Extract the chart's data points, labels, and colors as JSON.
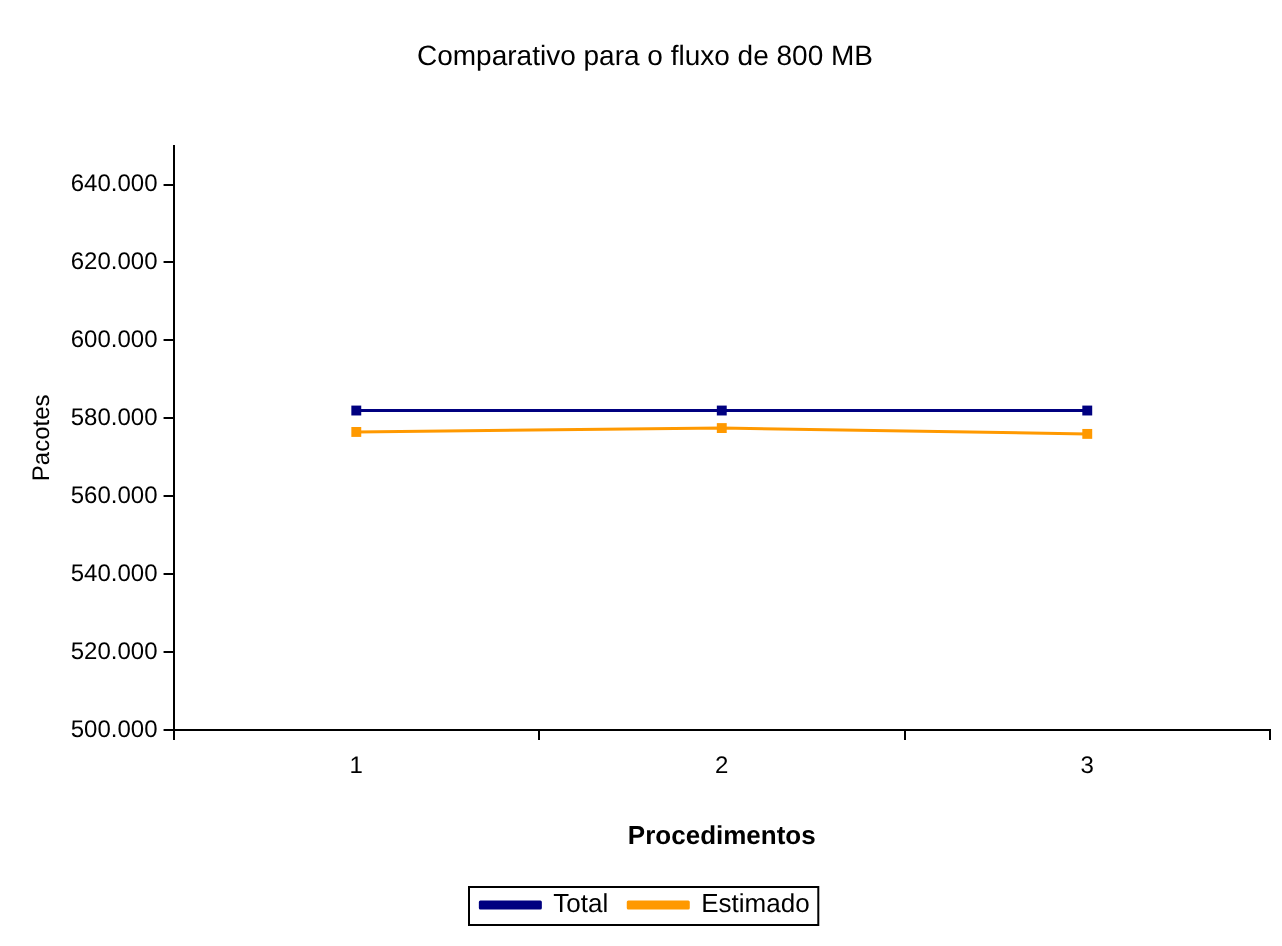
{
  "chart_data": {
    "type": "line",
    "title": "Comparativo para o fluxo de 800 MB",
    "xlabel": "Procedimentos",
    "ylabel": "Pacotes",
    "categories": [
      "1",
      "2",
      "3"
    ],
    "series": [
      {
        "name": "Total",
        "color": "#000080",
        "values": [
          582000,
          582000,
          582000
        ]
      },
      {
        "name": "Estimado",
        "color": "#ff9900",
        "values": [
          576500,
          577500,
          576000
        ]
      }
    ],
    "ylim": [
      500000,
      650000
    ],
    "yticks": [
      {
        "value": 500000,
        "label": "500.000"
      },
      {
        "value": 520000,
        "label": "520.000"
      },
      {
        "value": 540000,
        "label": "540.000"
      },
      {
        "value": 560000,
        "label": "560.000"
      },
      {
        "value": 580000,
        "label": "580.000"
      },
      {
        "value": 600000,
        "label": "600.000"
      },
      {
        "value": 620000,
        "label": "620.000"
      },
      {
        "value": 640000,
        "label": "640.000"
      }
    ],
    "grid": false,
    "legend": "bottom",
    "marker": "square",
    "line_style": "solid"
  }
}
